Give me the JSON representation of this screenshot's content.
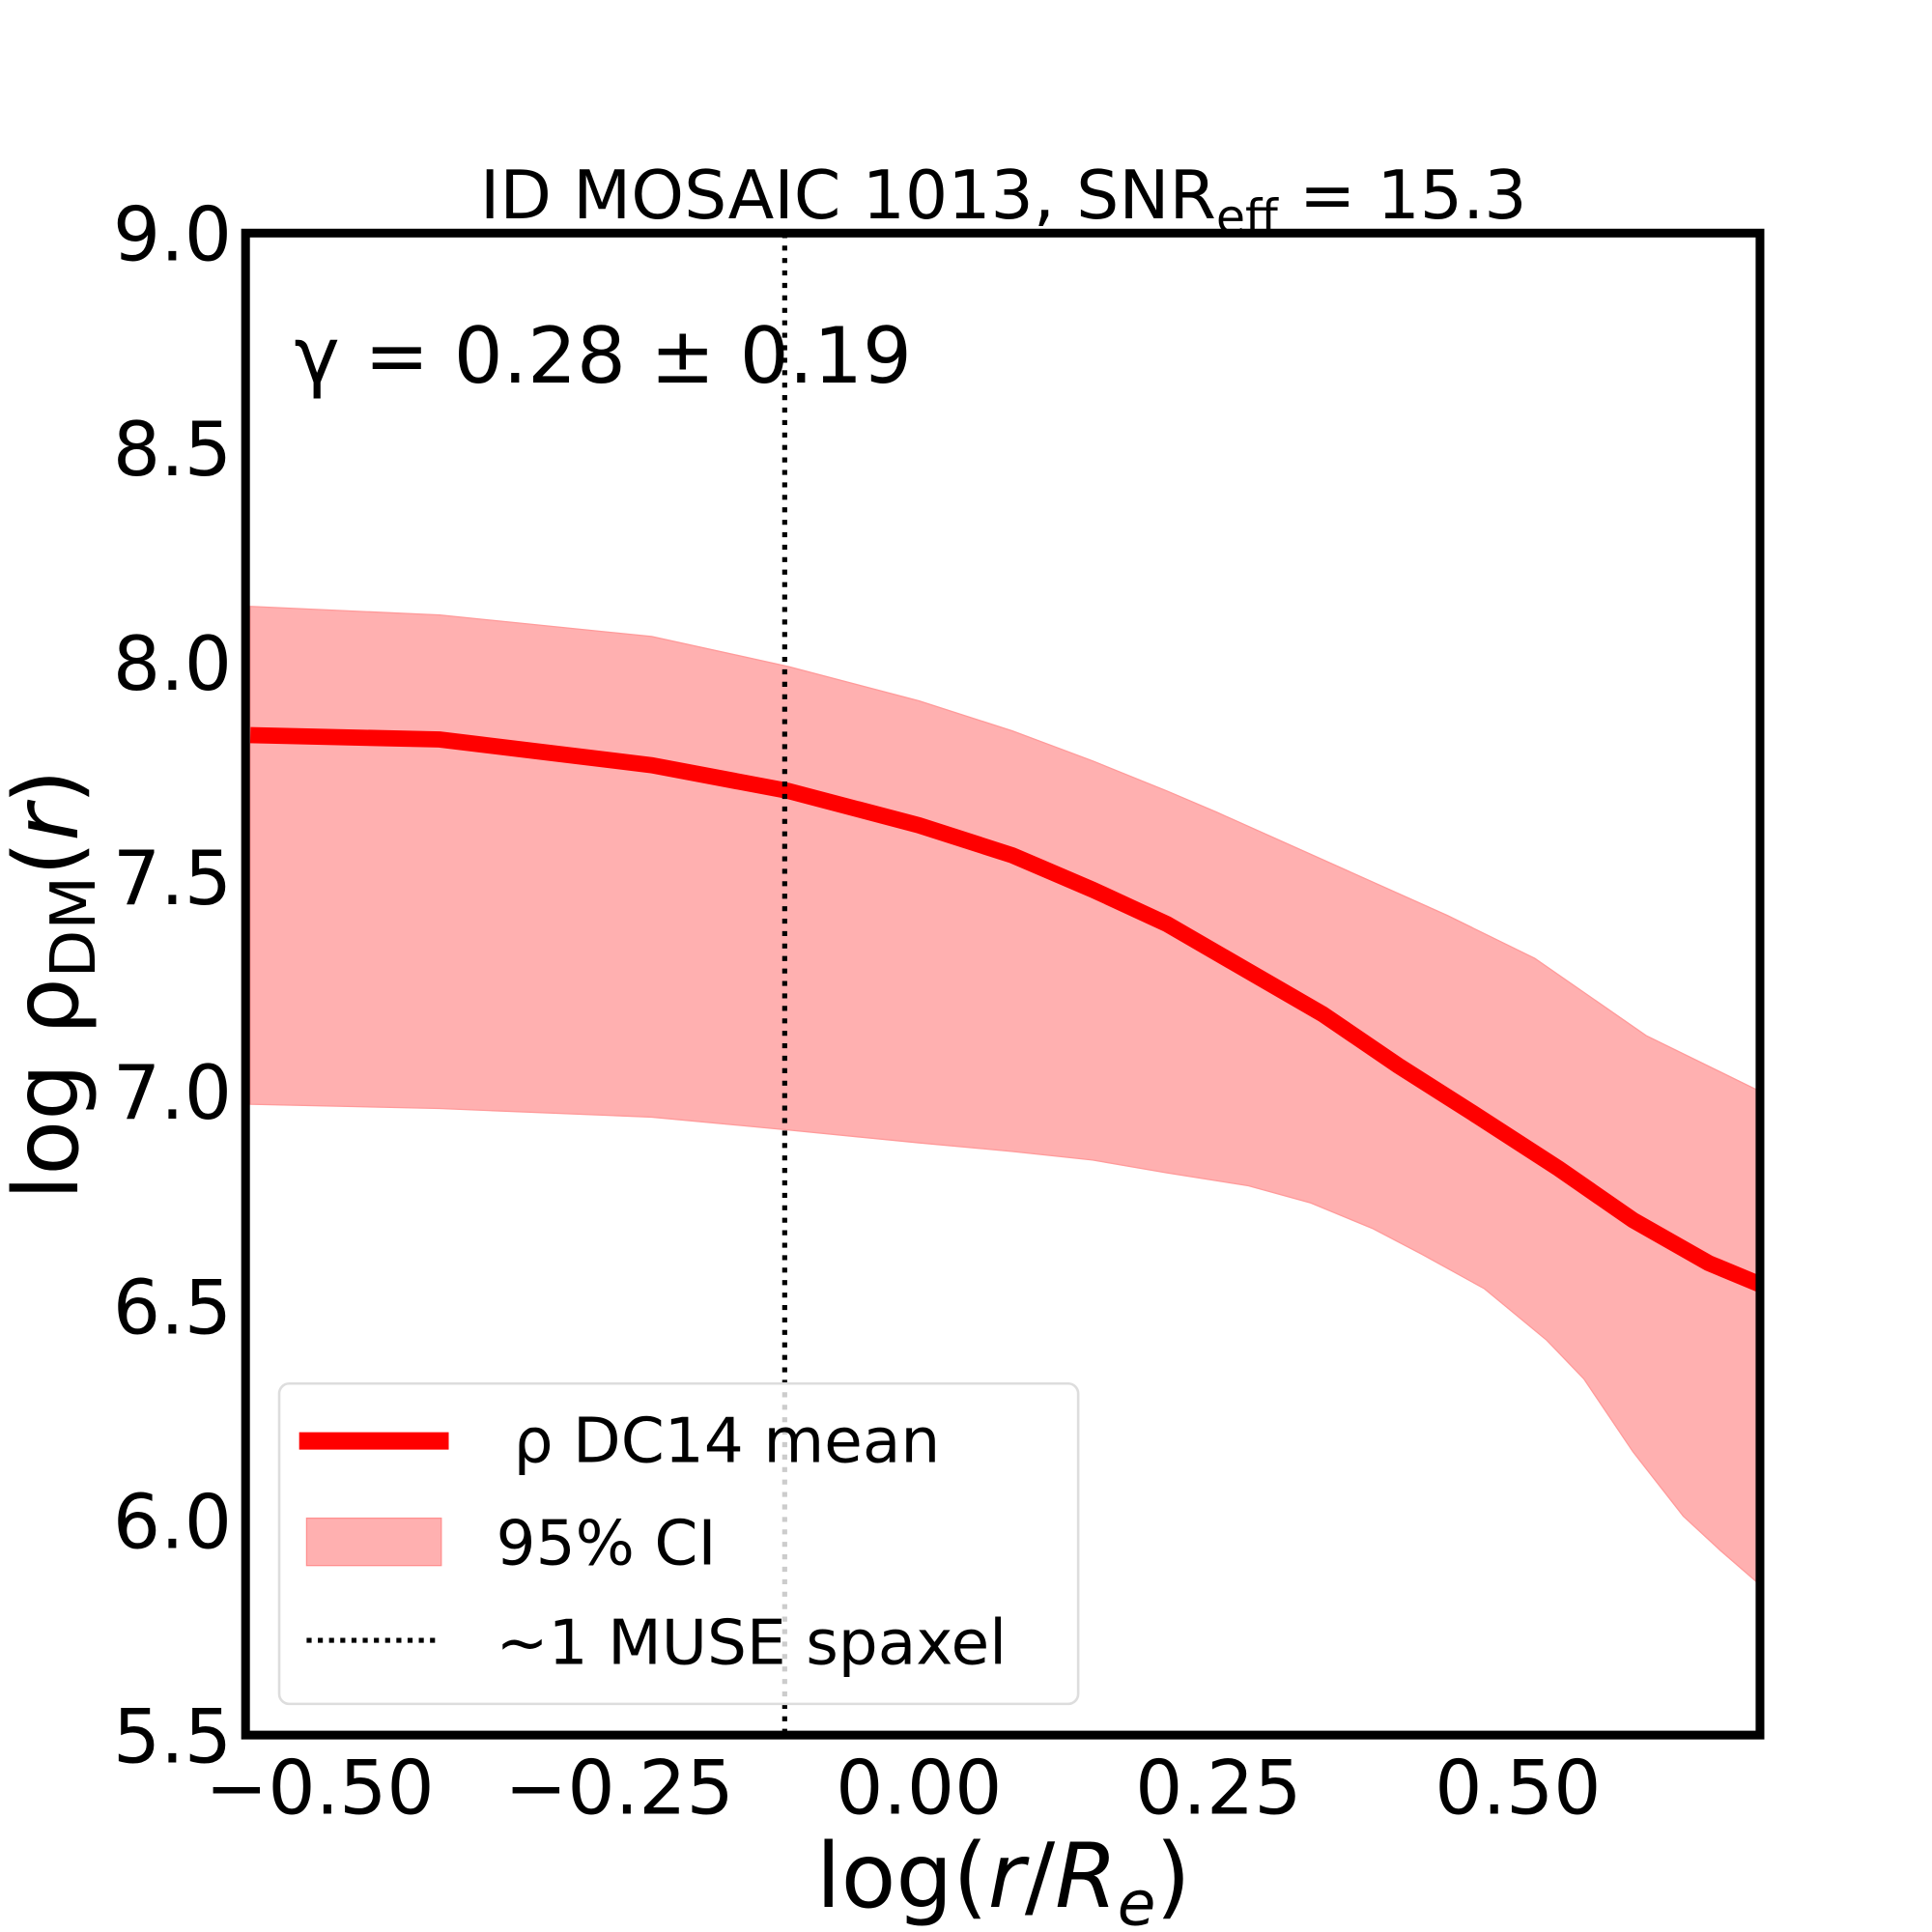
{
  "chart_data": {
    "type": "line",
    "title_main": "ID MOSAIC 1013, SNR",
    "title_sub": "eff",
    "title_tail": " = 15.3",
    "annotation": "γ = 0.28 ± 0.19",
    "xlabel_pre": "log(",
    "xlabel_r": "r",
    "xlabel_slash": "/",
    "xlabel_R": "R",
    "xlabel_sub": "e",
    "xlabel_post": ")",
    "ylabel_pre": "log ρ",
    "ylabel_sub": "DM",
    "ylabel_paren": "(",
    "ylabel_r": "r",
    "ylabel_close": ")",
    "xlim": [
      -0.562,
      0.702
    ],
    "ylim": [
      5.5,
      9.0
    ],
    "xticks": [
      -0.5,
      -0.25,
      0.0,
      0.25,
      0.5
    ],
    "xtick_labels": [
      "−0.50",
      "−0.25",
      "0.00",
      "0.25",
      "0.50"
    ],
    "yticks": [
      5.5,
      6.0,
      6.5,
      7.0,
      7.5,
      8.0,
      8.5,
      9.0
    ],
    "ytick_labels": [
      "5.5",
      "6.0",
      "6.5",
      "7.0",
      "7.5",
      "8.0",
      "8.5",
      "9.0"
    ],
    "grid": false,
    "legend_placement": "lower-left",
    "series": [
      {
        "name": "ρ DC14 mean",
        "color": "#ff0000",
        "x": [
          -0.558,
          -0.4,
          -0.223,
          -0.109,
          0.0,
          0.078,
          0.145,
          0.207,
          0.275,
          0.337,
          0.4,
          0.462,
          0.534,
          0.596,
          0.659,
          0.702
        ],
        "y": [
          7.83,
          7.82,
          7.76,
          7.7,
          7.62,
          7.55,
          7.47,
          7.39,
          7.28,
          7.18,
          7.06,
          6.95,
          6.82,
          6.7,
          6.6,
          6.55
        ]
      }
    ],
    "band": {
      "name": "95% CI",
      "color": "#ffb0b0",
      "upper_x": [
        -0.558,
        -0.4,
        -0.223,
        -0.109,
        0.0,
        0.078,
        0.145,
        0.207,
        0.249,
        0.337,
        0.441,
        0.514,
        0.607,
        0.702
      ],
      "upper_y": [
        8.13,
        8.11,
        8.06,
        7.99,
        7.91,
        7.84,
        7.77,
        7.7,
        7.65,
        7.54,
        7.41,
        7.31,
        7.13,
        7.0
      ],
      "lower_x": [
        -0.558,
        -0.4,
        -0.223,
        -0.109,
        0.0,
        0.078,
        0.145,
        0.207,
        0.275,
        0.327,
        0.379,
        0.42,
        0.472,
        0.524,
        0.555,
        0.596,
        0.638,
        0.669,
        0.702
      ],
      "lower_y": [
        6.97,
        6.96,
        6.94,
        6.91,
        6.88,
        6.86,
        6.84,
        6.81,
        6.78,
        6.74,
        6.68,
        6.62,
        6.54,
        6.42,
        6.33,
        6.16,
        6.01,
        5.93,
        5.85
      ]
    },
    "vline": {
      "name": "~1 MUSE spaxel",
      "x": -0.112,
      "style": "dotted"
    }
  }
}
